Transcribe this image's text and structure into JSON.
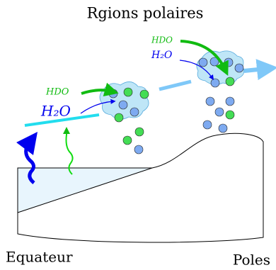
{
  "title": "Rgions polaires",
  "labels": {
    "hdo_left": "HDO",
    "h2o_left": "H₂O",
    "hdo_right": "HDO",
    "h2o_right": "H₂O"
  },
  "axis": {
    "left": "Equateur",
    "right": "Poles"
  }
}
